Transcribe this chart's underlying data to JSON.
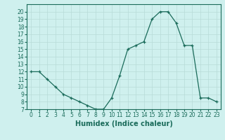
{
  "x": [
    0,
    1,
    2,
    3,
    4,
    5,
    6,
    7,
    8,
    9,
    10,
    11,
    12,
    13,
    14,
    15,
    16,
    17,
    18,
    19,
    20,
    21,
    22,
    23
  ],
  "y": [
    12,
    12,
    11,
    10,
    9,
    8.5,
    8,
    7.5,
    7,
    7,
    8.5,
    11.5,
    15,
    15.5,
    16,
    19,
    20,
    20,
    18.5,
    15.5,
    15.5,
    8.5,
    8.5,
    8
  ],
  "line_color": "#1a6b5a",
  "marker": "+",
  "marker_size": 3,
  "bg_color": "#cff0ee",
  "grid_color": "#b8dbd8",
  "xlabel": "Humidex (Indice chaleur)",
  "xlim": [
    -0.5,
    23.5
  ],
  "ylim": [
    7,
    21
  ],
  "yticks": [
    7,
    8,
    9,
    10,
    11,
    12,
    13,
    14,
    15,
    16,
    17,
    18,
    19,
    20
  ],
  "xticks": [
    0,
    1,
    2,
    3,
    4,
    5,
    6,
    7,
    8,
    9,
    10,
    11,
    12,
    13,
    14,
    15,
    16,
    17,
    18,
    19,
    20,
    21,
    22,
    23
  ],
  "tick_fontsize": 5.5,
  "label_fontsize": 7
}
